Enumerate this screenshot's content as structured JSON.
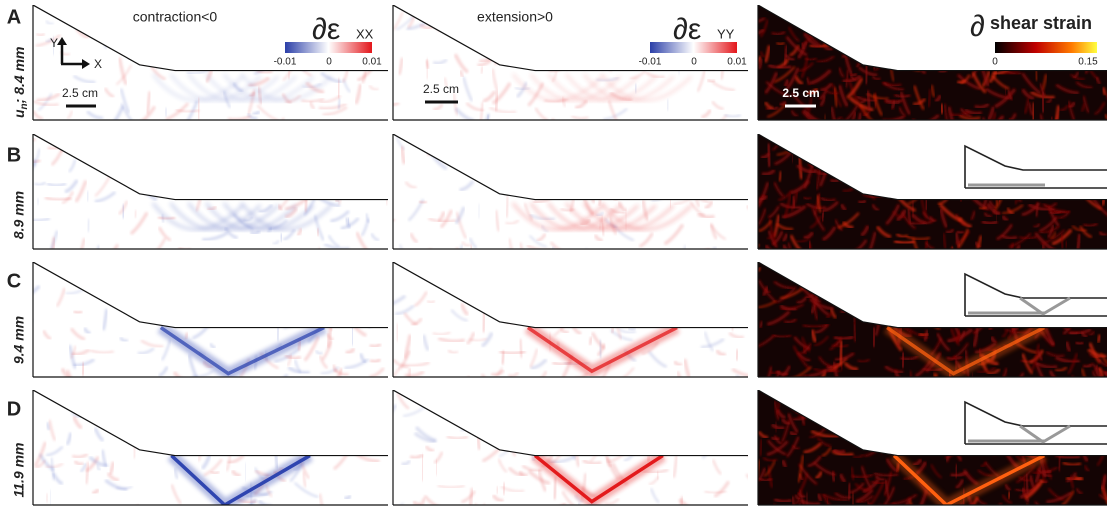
{
  "header": {
    "columns": [
      {
        "caption": "contraction<0",
        "symbol": "∂ε",
        "subscript": "XX",
        "colorbar": {
          "min": "-0.01",
          "mid": "0",
          "max": "0.01"
        },
        "scale_bar": "2.5 cm",
        "axis_y": "Y",
        "axis_x": "X"
      },
      {
        "caption": "extension>0",
        "symbol": "∂ε",
        "subscript": "YY",
        "colorbar": {
          "min": "-0.01",
          "mid": "0",
          "max": "0.01"
        },
        "scale_bar": "2.5 cm"
      },
      {
        "symbol": "∂",
        "title": "shear strain",
        "colorbar": {
          "min": "0",
          "max": "0.15"
        },
        "scale_bar": "2.5 cm"
      }
    ]
  },
  "rows": [
    {
      "letter": "A",
      "symbol": "u",
      "symbol_sub": "n",
      "displacement": "; 8.4 mm"
    },
    {
      "letter": "B",
      "displacement": "8.9 mm"
    },
    {
      "letter": "C",
      "displacement": "9.4 mm"
    },
    {
      "letter": "D",
      "displacement": "11.9 mm"
    }
  ]
}
